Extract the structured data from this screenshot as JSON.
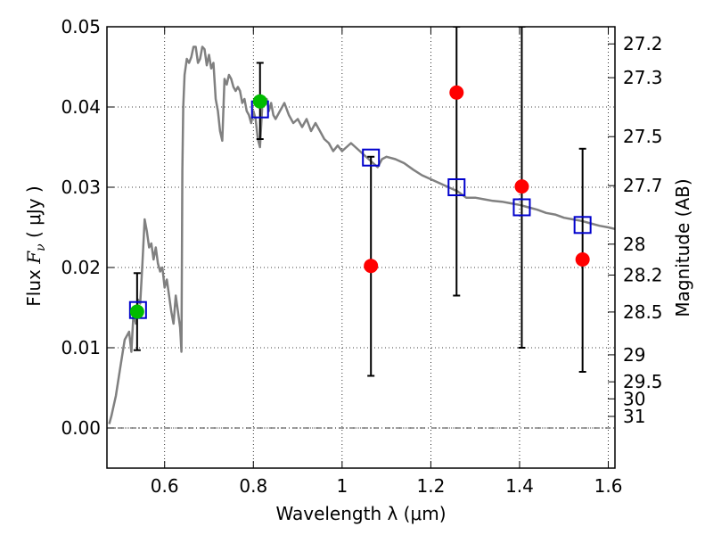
{
  "chart_data": {
    "type": "scatter",
    "xlabel": "Wavelength  λ (μm)",
    "ylabel": {
      "prefix": "Flux  ",
      "symbol": "F",
      "subscript": "ν",
      "unit": "  ( μJy )"
    },
    "y2label": "Magnitude (AB)",
    "xlim": [
      0.47,
      1.615
    ],
    "ylim": [
      -0.005,
      0.05
    ],
    "x_ticks": [
      0.6,
      0.8,
      1.0,
      1.2,
      1.4,
      1.6
    ],
    "x_tick_labels": [
      "0.6",
      "0.8",
      "1",
      "1.2",
      "1.4",
      "1.6"
    ],
    "y_ticks": [
      0.0,
      0.01,
      0.02,
      0.03,
      0.04,
      0.05
    ],
    "y_tick_labels": [
      "0.00",
      "0.01",
      "0.02",
      "0.03",
      "0.04",
      "0.05"
    ],
    "mag_ticks": [
      {
        "label": "27.2",
        "mag": 27.2
      },
      {
        "label": "27.3",
        "mag": 27.3
      },
      {
        "label": "27.5",
        "mag": 27.5
      },
      {
        "label": "27.7",
        "mag": 27.7
      },
      {
        "label": "28",
        "mag": 28
      },
      {
        "label": "28.2",
        "mag": 28.2
      },
      {
        "label": "28.5",
        "mag": 28.5
      },
      {
        "label": "29",
        "mag": 29
      },
      {
        "label": "29.5",
        "mag": 29.5
      },
      {
        "label": "30",
        "mag": 30
      },
      {
        "label": "31",
        "mag": 31
      }
    ],
    "grid": true,
    "zero_line": true,
    "colors": {
      "model": "#808080",
      "observed": "#ff0000",
      "observed_alt": "#00bb00",
      "synthetic": "#0000cc",
      "errorbar": "#000000",
      "grid": "#000000"
    },
    "series": [
      {
        "kind": "line",
        "x": [
          0.475,
          0.48,
          0.49,
          0.5,
          0.51,
          0.52,
          0.525,
          0.53,
          0.535,
          0.54,
          0.545,
          0.55,
          0.555,
          0.56,
          0.565,
          0.57,
          0.575,
          0.58,
          0.585,
          0.59,
          0.595,
          0.6,
          0.605,
          0.61,
          0.615,
          0.62,
          0.625,
          0.63,
          0.635,
          0.638,
          0.64,
          0.642,
          0.645,
          0.65,
          0.655,
          0.66,
          0.665,
          0.67,
          0.675,
          0.68,
          0.685,
          0.69,
          0.695,
          0.7,
          0.705,
          0.71,
          0.715,
          0.72,
          0.725,
          0.73,
          0.735,
          0.74,
          0.745,
          0.75,
          0.755,
          0.76,
          0.765,
          0.77,
          0.775,
          0.78,
          0.785,
          0.79,
          0.795,
          0.8,
          0.805,
          0.81,
          0.815,
          0.82,
          0.825,
          0.83,
          0.835,
          0.84,
          0.845,
          0.85,
          0.86,
          0.87,
          0.88,
          0.89,
          0.9,
          0.91,
          0.92,
          0.93,
          0.94,
          0.95,
          0.96,
          0.97,
          0.98,
          0.99,
          1.0,
          1.01,
          1.02,
          1.03,
          1.04,
          1.05,
          1.06,
          1.07,
          1.08,
          1.09,
          1.1,
          1.12,
          1.14,
          1.16,
          1.18,
          1.2,
          1.22,
          1.24,
          1.26,
          1.28,
          1.3,
          1.32,
          1.34,
          1.36,
          1.38,
          1.4,
          1.42,
          1.44,
          1.46,
          1.48,
          1.5,
          1.52,
          1.54,
          1.56,
          1.58,
          1.6,
          1.615
        ],
        "y": [
          0.0005,
          0.0015,
          0.004,
          0.0075,
          0.011,
          0.012,
          0.0095,
          0.0145,
          0.013,
          0.016,
          0.0155,
          0.0205,
          0.026,
          0.0245,
          0.0225,
          0.023,
          0.021,
          0.0225,
          0.0205,
          0.0195,
          0.02,
          0.0175,
          0.0185,
          0.0165,
          0.0145,
          0.013,
          0.0165,
          0.0145,
          0.0125,
          0.0095,
          0.032,
          0.04,
          0.044,
          0.046,
          0.0455,
          0.0462,
          0.0475,
          0.0475,
          0.0455,
          0.046,
          0.0475,
          0.0472,
          0.0452,
          0.0465,
          0.0448,
          0.0455,
          0.041,
          0.0395,
          0.037,
          0.0358,
          0.0435,
          0.0428,
          0.044,
          0.0435,
          0.0425,
          0.042,
          0.0425,
          0.042,
          0.0405,
          0.041,
          0.0395,
          0.039,
          0.038,
          0.0395,
          0.0385,
          0.036,
          0.035,
          0.04,
          0.0405,
          0.041,
          0.0395,
          0.0405,
          0.039,
          0.0385,
          0.0395,
          0.0405,
          0.039,
          0.038,
          0.0385,
          0.0375,
          0.0385,
          0.037,
          0.038,
          0.037,
          0.036,
          0.0355,
          0.0345,
          0.0352,
          0.0345,
          0.035,
          0.0355,
          0.035,
          0.0345,
          0.034,
          0.0335,
          0.033,
          0.0325,
          0.0335,
          0.0338,
          0.0335,
          0.033,
          0.0322,
          0.0315,
          0.031,
          0.0305,
          0.03,
          0.0295,
          0.0287,
          0.0287,
          0.0285,
          0.0283,
          0.0282,
          0.028,
          0.0278,
          0.0275,
          0.0272,
          0.0268,
          0.0266,
          0.0262,
          0.026,
          0.0258,
          0.0255,
          0.0252,
          0.025,
          0.0248
        ]
      },
      {
        "kind": "synthetic_squares",
        "x": [
          0.54,
          0.815,
          1.065,
          1.258,
          1.405,
          1.542
        ],
        "y": [
          0.0147,
          0.0397,
          0.0337,
          0.03,
          0.0275,
          0.0253
        ]
      },
      {
        "kind": "observed_errorbars",
        "points": [
          {
            "x": 0.538,
            "y": 0.0145,
            "lo": 0.0097,
            "hi": 0.0193,
            "color": "#00bb00"
          },
          {
            "x": 0.815,
            "y": 0.0407,
            "lo": 0.036,
            "hi": 0.0455,
            "color": "#00bb00"
          },
          {
            "x": 1.065,
            "y": 0.0202,
            "lo": 0.0065,
            "hi": 0.0338,
            "color": "#ff0000"
          },
          {
            "x": 1.258,
            "y": 0.0418,
            "lo": 0.0165,
            "hi": 0.05,
            "color": "#ff0000"
          },
          {
            "x": 1.405,
            "y": 0.0301,
            "lo": 0.01,
            "hi": 0.05,
            "color": "#ff0000"
          },
          {
            "x": 1.542,
            "y": 0.021,
            "lo": 0.007,
            "hi": 0.0348,
            "color": "#ff0000"
          }
        ]
      }
    ]
  }
}
